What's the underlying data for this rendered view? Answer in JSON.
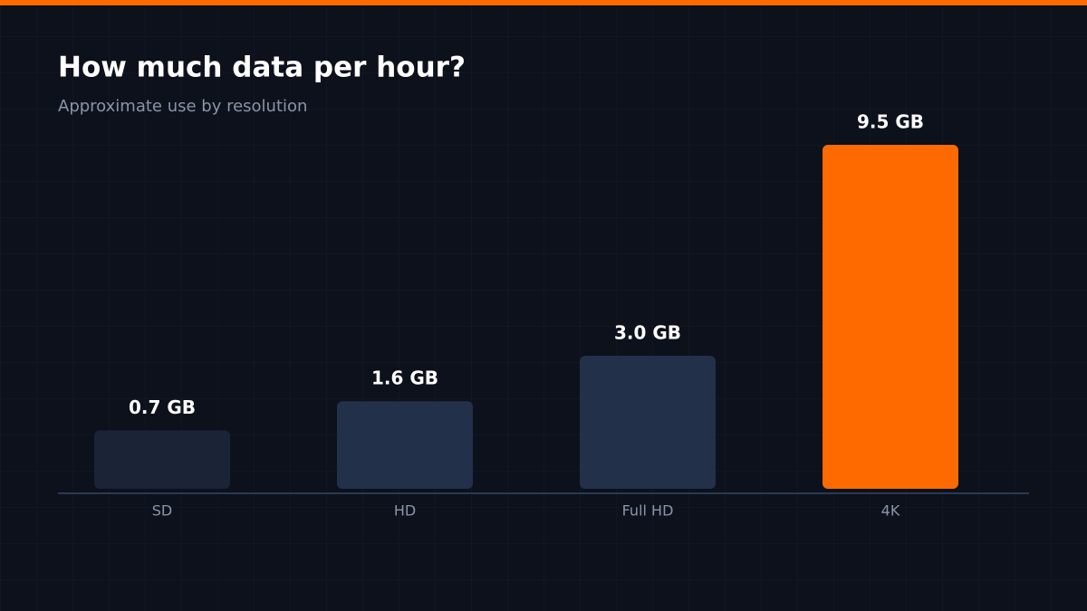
{
  "chart_data": {
    "type": "bar",
    "title": "How much data per hour?",
    "subtitle": "Approximate use by resolution",
    "categories": [
      "SD",
      "HD",
      "Full HD",
      "4K"
    ],
    "values": [
      0.7,
      1.6,
      3.0,
      9.5
    ],
    "value_labels": [
      "0.7 GB",
      "1.6 GB",
      "3.0 GB",
      "9.5 GB"
    ],
    "colors": [
      "#1b2436",
      "#22304a",
      "#22304a",
      "#ff6a00"
    ],
    "ylim": [
      -1.1,
      9.5
    ]
  }
}
